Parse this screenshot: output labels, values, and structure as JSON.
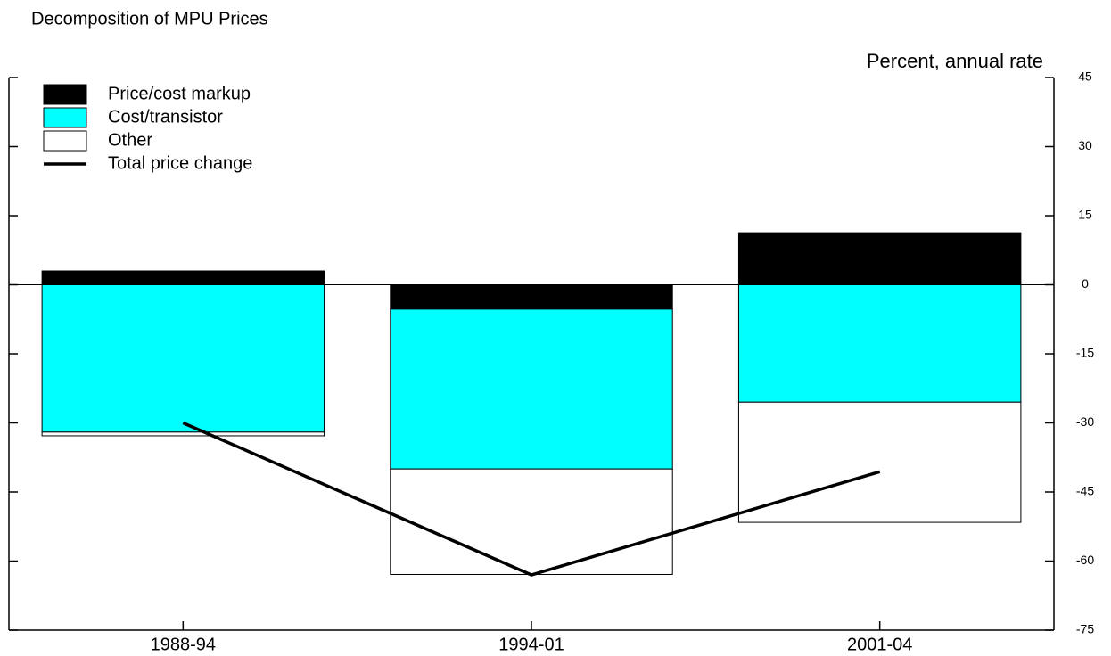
{
  "chart_data": {
    "type": "bar",
    "stacked": true,
    "title": "Decomposition of MPU Prices",
    "y_axis_label": "Percent, annual rate",
    "categories": [
      "1988-94",
      "1994-01",
      "2001-04"
    ],
    "series": [
      {
        "name": "Price/cost markup",
        "type": "bar",
        "color": "#000000",
        "values": [
          3.0,
          -5.3,
          11.3
        ]
      },
      {
        "name": "Cost/transistor",
        "type": "bar",
        "color": "#00ffff",
        "values": [
          -32.0,
          -34.7,
          -25.5
        ]
      },
      {
        "name": "Other",
        "type": "bar",
        "color": "#ffffff",
        "values": [
          -0.8,
          -22.9,
          -26.1
        ]
      },
      {
        "name": "Total price change",
        "type": "line",
        "color": "#000000",
        "values": [
          -30.0,
          -63.0,
          -40.6
        ]
      }
    ],
    "ylim": [
      -75,
      45
    ],
    "yticks": [
      -75,
      -60,
      -45,
      -30,
      -15,
      0,
      15,
      30,
      45
    ],
    "legend": "top-left"
  }
}
